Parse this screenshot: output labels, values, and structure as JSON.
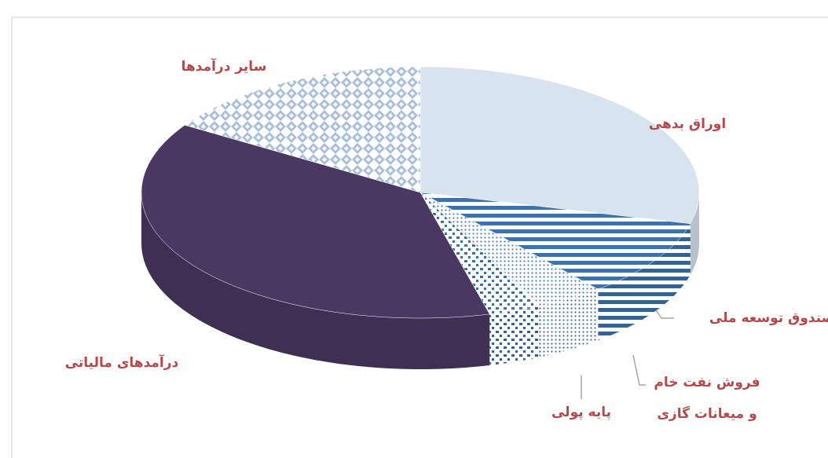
{
  "chart_data": {
    "type": "pie",
    "categories": [
      "اوراق بدهی",
      "صندوق توسعه ملی",
      "فروش نفت خام و میعانات گازی",
      "پایه پولی",
      "درآمدهای مالیاتی",
      "سایر درآمدها"
    ],
    "values": [
      29,
      10,
      4,
      3,
      38,
      16
    ],
    "colors": [
      "#d8e3f0",
      "#3f72ad",
      "#4d7fb8",
      "#3e6ea6",
      "#4a3862",
      "#a9bfdc"
    ],
    "patterns": [
      "solid",
      "stripes",
      "dots",
      "blocks",
      "solid",
      "diamonds"
    ]
  }
}
